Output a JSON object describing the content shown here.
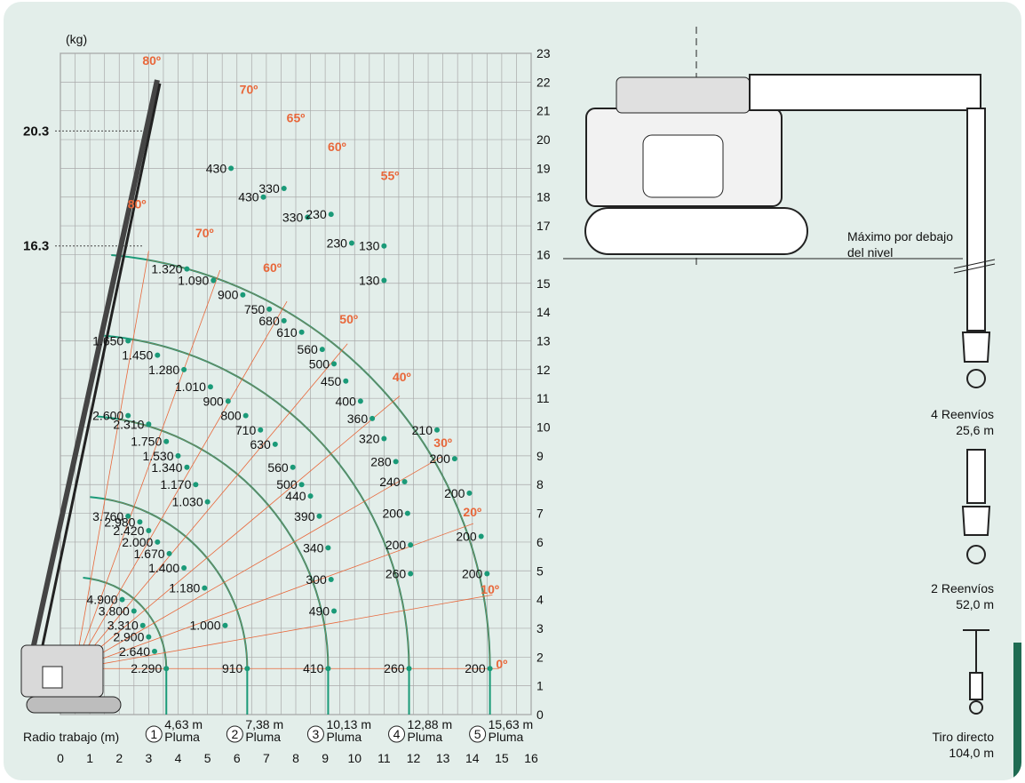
{
  "chart_data": {
    "type": "scatter",
    "xlabel": "Radio trabajo (m)",
    "ylabel": "(kg)",
    "xlim": [
      0,
      16
    ],
    "ylim": [
      0,
      23
    ],
    "x_ticks": [
      "0",
      "1",
      "2",
      "3",
      "4",
      "5",
      "6",
      "7",
      "8",
      "9",
      "10",
      "11",
      "12",
      "13",
      "14",
      "15",
      "16"
    ],
    "y_ticks": [
      "0",
      "1",
      "2",
      "3",
      "4",
      "5",
      "6",
      "7",
      "8",
      "9",
      "10",
      "11",
      "12",
      "13",
      "14",
      "15",
      "16",
      "17",
      "18",
      "19",
      "20",
      "21",
      "22",
      "23"
    ],
    "left_markers": [
      {
        "label": "20.3",
        "y": 20.3
      },
      {
        "label": "16.3",
        "y": 16.3
      }
    ],
    "boom_lengths": [
      {
        "num": "1",
        "length": "4,63 m",
        "label": "Pluma",
        "x": 3.6
      },
      {
        "num": "2",
        "length": "7,38 m",
        "label": "Pluma",
        "x": 6.35
      },
      {
        "num": "3",
        "length": "10,13 m",
        "label": "Pluma",
        "x": 9.1
      },
      {
        "num": "4",
        "length": "12,88 m",
        "label": "Pluma",
        "x": 11.85
      },
      {
        "num": "5",
        "length": "15,63 m",
        "label": "Pluma",
        "x": 14.6
      }
    ],
    "angle_labels": [
      {
        "text": "0º",
        "x": 15.0,
        "y": 1.6
      },
      {
        "text": "10º",
        "x": 14.6,
        "y": 4.2
      },
      {
        "text": "20º",
        "x": 14.0,
        "y": 6.9
      },
      {
        "text": "30º",
        "x": 13.0,
        "y": 9.3
      },
      {
        "text": "40º",
        "x": 11.6,
        "y": 11.6
      },
      {
        "text": "50º",
        "x": 9.8,
        "y": 13.6
      },
      {
        "text": "55º",
        "x": 11.2,
        "y": 18.6
      },
      {
        "text": "60º",
        "x": 9.4,
        "y": 19.6
      },
      {
        "text": "65º",
        "x": 8.0,
        "y": 20.6
      },
      {
        "text": "70º",
        "x": 6.4,
        "y": 21.6
      },
      {
        "text": "80º",
        "x": 3.1,
        "y": 22.6
      },
      {
        "text": "60º",
        "x": 7.2,
        "y": 15.4
      },
      {
        "text": "70º",
        "x": 4.9,
        "y": 16.6
      },
      {
        "text": "80º",
        "x": 2.6,
        "y": 17.6
      }
    ],
    "series": [
      {
        "name": "Pluma 1",
        "points": [
          [
            2.1,
            4.0,
            "4.900"
          ],
          [
            2.5,
            3.6,
            "3.800"
          ],
          [
            2.8,
            3.1,
            "3.310"
          ],
          [
            3.0,
            2.7,
            "2.900"
          ],
          [
            3.2,
            2.2,
            "2.640"
          ],
          [
            3.6,
            1.6,
            "2.290"
          ]
        ]
      },
      {
        "name": "Pluma 2",
        "points": [
          [
            2.3,
            10.4,
            "2.600"
          ],
          [
            3.0,
            10.1,
            "2.310"
          ],
          [
            3.6,
            9.5,
            "1.750"
          ],
          [
            4.0,
            9.0,
            "1.530"
          ],
          [
            4.3,
            8.6,
            "1.340"
          ],
          [
            4.6,
            8.0,
            "1.170"
          ],
          [
            5.0,
            7.4,
            "1.030"
          ],
          [
            2.3,
            6.9,
            "3.760"
          ],
          [
            2.7,
            6.7,
            "2.980"
          ],
          [
            3.0,
            6.4,
            "2.420"
          ],
          [
            3.3,
            6.0,
            "2.000"
          ],
          [
            3.7,
            5.6,
            "1.670"
          ],
          [
            4.2,
            5.1,
            "1.400"
          ],
          [
            4.9,
            4.4,
            "1.180"
          ],
          [
            5.6,
            3.1,
            "1.000"
          ],
          [
            6.35,
            1.6,
            "910"
          ]
        ]
      },
      {
        "name": "Pluma 3",
        "points": [
          [
            2.3,
            13.0,
            "1.650"
          ],
          [
            3.3,
            12.5,
            "1.450"
          ],
          [
            4.2,
            12.0,
            "1.280"
          ],
          [
            5.1,
            11.4,
            "1.010"
          ],
          [
            5.7,
            10.9,
            "900"
          ],
          [
            6.3,
            10.4,
            "800"
          ],
          [
            6.8,
            9.9,
            "710"
          ],
          [
            7.3,
            9.4,
            "630"
          ],
          [
            7.9,
            8.6,
            "560"
          ],
          [
            8.2,
            8.0,
            "500"
          ],
          [
            8.5,
            7.6,
            "440"
          ],
          [
            8.8,
            6.9,
            "390"
          ],
          [
            9.1,
            5.8,
            "340"
          ],
          [
            9.2,
            4.7,
            "300"
          ],
          [
            9.3,
            3.6,
            "490"
          ],
          [
            9.1,
            1.6,
            "410"
          ]
        ]
      },
      {
        "name": "Pluma 4",
        "points": [
          [
            4.3,
            15.5,
            "1.320"
          ],
          [
            5.2,
            15.1,
            "1.090"
          ],
          [
            6.2,
            14.6,
            "900"
          ],
          [
            7.1,
            14.1,
            "750"
          ],
          [
            7.6,
            13.7,
            "680"
          ],
          [
            8.2,
            13.3,
            "610"
          ],
          [
            8.9,
            12.7,
            "560"
          ],
          [
            9.3,
            12.2,
            "500"
          ],
          [
            9.7,
            11.6,
            "450"
          ],
          [
            10.2,
            10.9,
            "400"
          ],
          [
            10.6,
            10.3,
            "360"
          ],
          [
            11.0,
            9.6,
            "320"
          ],
          [
            11.4,
            8.8,
            "280"
          ],
          [
            11.7,
            8.1,
            "240"
          ],
          [
            11.8,
            7.0,
            "200"
          ],
          [
            11.9,
            5.9,
            "200"
          ],
          [
            11.9,
            4.9,
            "260"
          ],
          [
            11.85,
            1.6,
            "260"
          ]
        ]
      },
      {
        "name": "Pluma 5",
        "points": [
          [
            12.8,
            9.9,
            "210"
          ],
          [
            13.4,
            8.9,
            "200"
          ],
          [
            13.9,
            7.7,
            "200"
          ],
          [
            14.3,
            6.2,
            "200"
          ],
          [
            14.5,
            4.9,
            "200"
          ],
          [
            14.6,
            1.6,
            "200"
          ]
        ]
      },
      {
        "name": "Pluma 5 elevada",
        "points": [
          [
            6.9,
            18.0,
            "430"
          ],
          [
            8.4,
            17.3,
            "330"
          ],
          [
            9.9,
            16.4,
            "230"
          ],
          [
            11.0,
            15.1,
            "130"
          ],
          [
            5.8,
            19.0,
            "430"
          ],
          [
            7.6,
            18.3,
            "330"
          ],
          [
            9.2,
            17.4,
            "230"
          ],
          [
            11.0,
            16.3,
            "130"
          ]
        ]
      }
    ]
  },
  "right_panel": {
    "note": "Máximo por debajo del nivel",
    "configs": [
      {
        "name": "4 Reenvíos",
        "value": "25,6 m"
      },
      {
        "name": "2 Reenvíos",
        "value": "52,0 m"
      },
      {
        "name": "Tiro directo",
        "value": "104,0 m"
      }
    ]
  },
  "colors": {
    "grid": "#a9a9a9",
    "green": "#1a9a78",
    "orange": "#e8673a",
    "background": "#e3eeea",
    "tab": "#1f6b52"
  }
}
